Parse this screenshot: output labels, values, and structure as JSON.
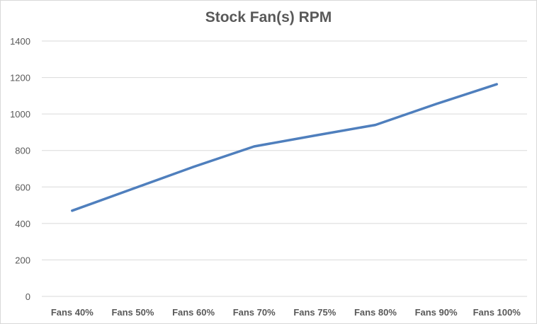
{
  "chart_data": {
    "type": "line",
    "title": "Stock Fan(s) RPM",
    "xlabel": "",
    "ylabel": "",
    "categories": [
      "Fans 40%",
      "Fans 50%",
      "Fans 60%",
      "Fans 70%",
      "Fans 75%",
      "Fans 80%",
      "Fans 90%",
      "Fans 100%"
    ],
    "series": [
      {
        "values": [
          470,
          590,
          710,
          822,
          882,
          940,
          1055,
          1163
        ],
        "color": "#4f7fbd"
      }
    ],
    "ylim": [
      0,
      1400
    ],
    "yticks": [
      0,
      200,
      400,
      600,
      800,
      1000,
      1200,
      1400
    ],
    "grid": true,
    "legend": "none"
  }
}
